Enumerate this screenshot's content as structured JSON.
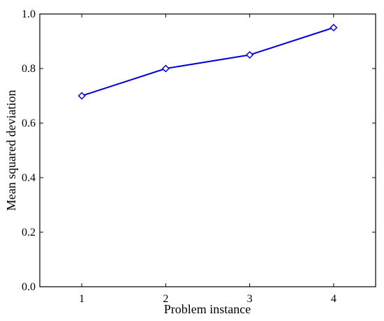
{
  "chart_data": {
    "type": "line",
    "title": "",
    "xlabel": "Problem instance",
    "ylabel": "Mean squared deviation",
    "x": [
      1,
      2,
      3,
      4
    ],
    "xticks": [
      "1",
      "2",
      "3",
      "4"
    ],
    "xlim": [
      0.5,
      4.5
    ],
    "ylim": [
      0,
      1
    ],
    "yticks": [
      "0.0",
      "0.2",
      "0.4",
      "0.6",
      "0.8",
      "1.0"
    ],
    "ytick_values": [
      0,
      0.2,
      0.4,
      0.6,
      0.8,
      1.0
    ],
    "grid": false,
    "legend": "none",
    "series": [
      {
        "values": [
          0.7,
          0.8,
          0.85,
          0.95
        ],
        "color": "#0000dd",
        "marker": "diamond-open"
      }
    ]
  }
}
